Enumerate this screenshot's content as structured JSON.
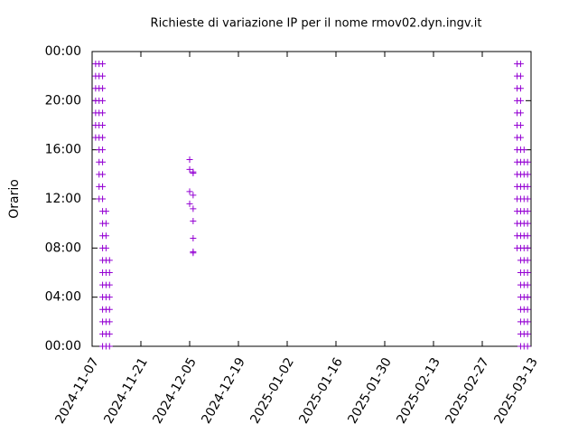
{
  "chart_data": {
    "type": "scatter",
    "title": "Richieste di variazione IP per il nome rmov02.dyn.ingv.it",
    "y_label": "Orario",
    "color": "#9400d3",
    "grid": false,
    "xlim": [
      "2024-11-07",
      "2025-03-13"
    ],
    "xticks": [
      "2024-11-07",
      "2024-11-21",
      "2024-12-05",
      "2024-12-19",
      "2025-01-02",
      "2025-01-16",
      "2025-01-30",
      "2025-02-13",
      "2025-02-27",
      "2025-03-13"
    ],
    "ylim": [
      0,
      24
    ],
    "yticks": [
      {
        "value": 0,
        "label": "00:00"
      },
      {
        "value": 4,
        "label": "04:00"
      },
      {
        "value": 8,
        "label": "08:00"
      },
      {
        "value": 12,
        "label": "12:00"
      },
      {
        "value": 16,
        "label": "16:00"
      },
      {
        "value": 20,
        "label": "20:00"
      },
      {
        "value": 24,
        "label": "00:00"
      }
    ],
    "x": [
      "2024-11-08",
      "2024-11-08",
      "2024-11-08",
      "2024-11-08",
      "2024-11-08",
      "2024-11-08",
      "2024-11-08",
      "2024-11-09",
      "2024-11-09",
      "2024-11-09",
      "2024-11-09",
      "2024-11-09",
      "2024-11-09",
      "2024-11-09",
      "2024-11-09",
      "2024-11-09",
      "2024-11-09",
      "2024-11-09",
      "2024-11-09",
      "2024-11-10",
      "2024-11-10",
      "2024-11-10",
      "2024-11-10",
      "2024-11-10",
      "2024-11-10",
      "2024-11-10",
      "2024-11-10",
      "2024-11-10",
      "2024-11-10",
      "2024-11-10",
      "2024-11-10",
      "2024-11-10",
      "2024-11-10",
      "2024-11-10",
      "2024-11-10",
      "2024-11-10",
      "2024-11-10",
      "2024-11-10",
      "2024-11-10",
      "2024-11-10",
      "2024-11-10",
      "2024-11-10",
      "2024-11-10",
      "2024-11-11",
      "2024-11-11",
      "2024-11-11",
      "2024-11-11",
      "2024-11-11",
      "2024-11-11",
      "2024-11-11",
      "2024-11-11",
      "2024-11-11",
      "2024-11-11",
      "2024-11-11",
      "2024-11-11",
      "2024-11-12",
      "2024-11-12",
      "2024-11-12",
      "2024-11-12",
      "2024-11-12",
      "2024-11-12",
      "2024-11-12",
      "2024-11-12",
      "2024-12-05",
      "2024-12-05",
      "2024-12-05",
      "2024-12-05",
      "2024-12-06",
      "2024-12-06",
      "2024-12-06",
      "2024-12-06",
      "2024-12-06",
      "2024-12-06",
      "2024-12-06",
      "2024-12-06",
      "2025-03-09",
      "2025-03-09",
      "2025-03-09",
      "2025-03-09",
      "2025-03-09",
      "2025-03-09",
      "2025-03-09",
      "2025-03-09",
      "2025-03-09",
      "2025-03-09",
      "2025-03-09",
      "2025-03-09",
      "2025-03-09",
      "2025-03-09",
      "2025-03-09",
      "2025-03-09",
      "2025-03-10",
      "2025-03-10",
      "2025-03-10",
      "2025-03-10",
      "2025-03-10",
      "2025-03-10",
      "2025-03-10",
      "2025-03-10",
      "2025-03-10",
      "2025-03-10",
      "2025-03-10",
      "2025-03-10",
      "2025-03-10",
      "2025-03-10",
      "2025-03-10",
      "2025-03-10",
      "2025-03-10",
      "2025-03-10",
      "2025-03-10",
      "2025-03-10",
      "2025-03-10",
      "2025-03-10",
      "2025-03-10",
      "2025-03-10",
      "2025-03-11",
      "2025-03-11",
      "2025-03-11",
      "2025-03-11",
      "2025-03-11",
      "2025-03-11",
      "2025-03-11",
      "2025-03-11",
      "2025-03-11",
      "2025-03-11",
      "2025-03-11",
      "2025-03-11",
      "2025-03-11",
      "2025-03-11",
      "2025-03-11",
      "2025-03-11",
      "2025-03-11",
      "2025-03-12",
      "2025-03-12",
      "2025-03-12",
      "2025-03-12",
      "2025-03-12",
      "2025-03-12",
      "2025-03-12",
      "2025-03-12",
      "2025-03-12",
      "2025-03-12",
      "2025-03-12",
      "2025-03-12",
      "2025-03-12",
      "2025-03-12",
      "2025-03-12",
      "2025-03-12"
    ],
    "y": [
      17,
      18,
      19,
      20,
      21,
      22,
      23,
      12,
      13,
      14,
      15,
      16,
      17,
      18,
      19,
      20,
      21,
      22,
      23,
      0,
      1,
      2,
      3,
      4,
      5,
      6,
      7,
      8,
      9,
      10,
      11,
      12,
      13,
      14,
      15,
      16,
      17,
      18,
      19,
      20,
      21,
      22,
      23,
      0,
      1,
      2,
      3,
      4,
      5,
      6,
      7,
      8,
      9,
      10,
      11,
      0,
      1,
      2,
      3,
      4,
      5,
      6,
      7,
      15.2,
      14.4,
      12.6,
      11.6,
      14.2,
      14.1,
      12.3,
      11.2,
      10.2,
      8.8,
      7.7,
      7.6,
      8,
      9,
      10,
      11,
      12,
      13,
      14,
      15,
      16,
      17,
      18,
      19,
      20,
      21,
      22,
      23,
      0,
      1,
      2,
      3,
      4,
      5,
      6,
      7,
      8,
      9,
      10,
      11,
      12,
      13,
      14,
      15,
      16,
      17,
      18,
      19,
      20,
      21,
      22,
      23,
      0,
      1,
      2,
      3,
      4,
      5,
      6,
      7,
      8,
      9,
      10,
      11,
      12,
      13,
      14,
      15,
      16,
      0,
      1,
      2,
      3,
      4,
      5,
      6,
      7,
      8,
      9,
      10,
      11,
      12,
      13,
      14,
      15
    ]
  }
}
